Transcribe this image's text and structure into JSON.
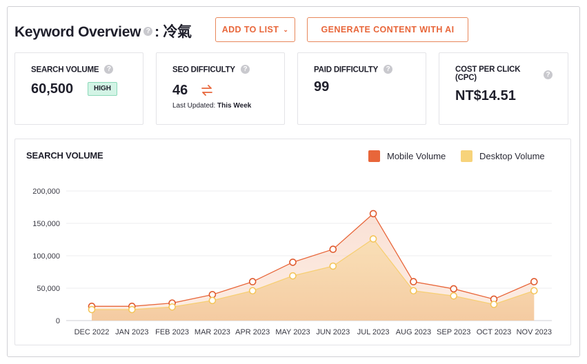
{
  "header": {
    "title": "Keyword Overview",
    "help_glyph": "?",
    "keyword": ": 冷氣",
    "add_to_list_label": "ADD TO LIST",
    "add_to_list_chevron": "⌄",
    "generate_label": "GENERATE CONTENT WITH AI"
  },
  "metrics": {
    "search_volume": {
      "label": "SEARCH VOLUME",
      "value": "60,500",
      "badge": "HIGH"
    },
    "seo_difficulty": {
      "label": "SEO DIFFICULTY",
      "value": "46",
      "updated_prefix": "Last Updated:",
      "updated_value": "This Week"
    },
    "paid_difficulty": {
      "label": "PAID DIFFICULTY",
      "value": "99"
    },
    "cpc": {
      "label_line1": "COST PER CLICK",
      "label_line2": "(CPC)",
      "value": "NT$14.51"
    }
  },
  "colors": {
    "accent": "#e8663a",
    "mobile": "#e8663a",
    "desktop": "#f7d37a",
    "badge_bg": "#d3f4e6"
  },
  "chart_data": {
    "type": "area",
    "title": "SEARCH VOLUME",
    "categories": [
      "DEC 2022",
      "JAN 2023",
      "FEB 2023",
      "MAR 2023",
      "APR 2023",
      "MAY 2023",
      "JUN 2023",
      "JUL 2023",
      "AUG 2023",
      "SEP 2023",
      "OCT 2023",
      "NOV 2023"
    ],
    "series": [
      {
        "name": "Mobile Volume",
        "color": "#e8663a",
        "values": [
          22000,
          22000,
          27000,
          40000,
          60000,
          90000,
          110000,
          165000,
          60000,
          49000,
          33000,
          60000
        ]
      },
      {
        "name": "Desktop Volume",
        "color": "#f7d37a",
        "values": [
          17000,
          17000,
          21000,
          31000,
          46000,
          69000,
          84000,
          126000,
          46000,
          38000,
          25000,
          46000
        ]
      }
    ],
    "yticks": [
      "0",
      "50,000",
      "100,000",
      "150,000",
      "200,000"
    ],
    "ylim": [
      0,
      200000
    ],
    "grid": true,
    "legend": "top-right"
  }
}
